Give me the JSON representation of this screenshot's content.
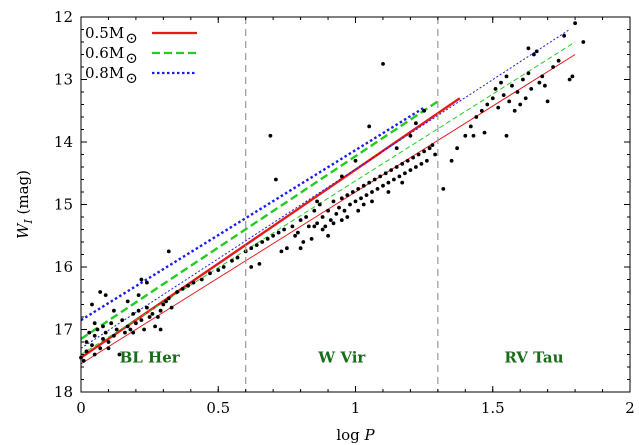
{
  "chart_data": {
    "type": "scatter",
    "title": "",
    "xlabel": "log P",
    "ylabel": "W_I (mag)",
    "xlim": [
      0,
      2
    ],
    "ylim": [
      12,
      18
    ],
    "y_inverted": true,
    "x_ticks": [
      0,
      0.5,
      1,
      1.5,
      2
    ],
    "x_tick_labels": [
      "0",
      "0.5",
      "1",
      "1.5",
      "2"
    ],
    "y_ticks": [
      12,
      13,
      14,
      15,
      16,
      17,
      18
    ],
    "y_tick_labels": [
      "12",
      "13",
      "14",
      "15",
      "16",
      "17",
      "18"
    ],
    "grid": false,
    "legend_position": "top-left",
    "dividers": [
      0.6,
      1.3
    ],
    "regions": [
      {
        "label": "BL Her",
        "x": 0.25,
        "y": 17.45
      },
      {
        "label": "W Vir",
        "x": 0.95,
        "y": 17.45
      },
      {
        "label": "RV Tau",
        "x": 1.65,
        "y": 17.45
      }
    ],
    "series": [
      {
        "name": "0.5M",
        "name_suffix": "⊙",
        "color": "#e41a1c",
        "dash": "solid",
        "thick": {
          "x": [
            0.0,
            1.38
          ],
          "y": [
            17.45,
            13.3
          ]
        },
        "thin": {
          "x": [
            0.0,
            1.8
          ],
          "y": [
            17.55,
            12.6
          ]
        }
      },
      {
        "name": "0.6M",
        "name_suffix": "⊙",
        "color": "#22cc22",
        "dash": "dashed",
        "thick": {
          "x": [
            0.0,
            1.3
          ],
          "y": [
            17.15,
            13.35
          ]
        },
        "thin": {
          "x": [
            0.0,
            1.8
          ],
          "y": [
            17.4,
            12.4
          ]
        }
      },
      {
        "name": "0.8M",
        "name_suffix": "⊙",
        "color": "#1a1aee",
        "dash": "dotted",
        "thick": {
          "x": [
            0.0,
            1.25
          ],
          "y": [
            16.85,
            13.45
          ]
        },
        "thin": {
          "x": [
            0.0,
            1.78
          ],
          "y": [
            17.3,
            12.2
          ]
        }
      }
    ],
    "points": [
      [
        0.0,
        17.45
      ],
      [
        0.01,
        17.5
      ],
      [
        0.02,
        17.2
      ],
      [
        0.02,
        17.35
      ],
      [
        0.03,
        17.05
      ],
      [
        0.04,
        17.25
      ],
      [
        0.05,
        17.4
      ],
      [
        0.05,
        17.1
      ],
      [
        0.06,
        17.0
      ],
      [
        0.07,
        17.3
      ],
      [
        0.08,
        17.15
      ],
      [
        0.08,
        16.95
      ],
      [
        0.09,
        17.05
      ],
      [
        0.1,
        17.2
      ],
      [
        0.1,
        17.3
      ],
      [
        0.11,
        16.9
      ],
      [
        0.12,
        17.1
      ],
      [
        0.13,
        17.0
      ],
      [
        0.14,
        17.4
      ],
      [
        0.15,
        16.85
      ],
      [
        0.16,
        17.05
      ],
      [
        0.17,
        16.95
      ],
      [
        0.18,
        17.0
      ],
      [
        0.19,
        16.75
      ],
      [
        0.2,
        16.9
      ],
      [
        0.21,
        16.7
      ],
      [
        0.22,
        16.85
      ],
      [
        0.23,
        17.0
      ],
      [
        0.24,
        16.65
      ],
      [
        0.25,
        16.8
      ],
      [
        0.26,
        16.75
      ],
      [
        0.27,
        16.95
      ],
      [
        0.28,
        16.8
      ],
      [
        0.29,
        16.7
      ],
      [
        0.3,
        16.6
      ],
      [
        0.31,
        16.55
      ],
      [
        0.32,
        16.5
      ],
      [
        0.33,
        16.65
      ],
      [
        0.35,
        16.4
      ],
      [
        0.37,
        16.35
      ],
      [
        0.39,
        16.3
      ],
      [
        0.41,
        16.25
      ],
      [
        0.44,
        16.2
      ],
      [
        0.47,
        16.1
      ],
      [
        0.5,
        16.05
      ],
      [
        0.52,
        16.0
      ],
      [
        0.55,
        15.9
      ],
      [
        0.57,
        15.85
      ],
      [
        0.04,
        16.6
      ],
      [
        0.07,
        16.4
      ],
      [
        0.09,
        16.45
      ],
      [
        0.05,
        16.9
      ],
      [
        0.12,
        16.7
      ],
      [
        0.17,
        16.55
      ],
      [
        0.21,
        16.45
      ],
      [
        0.32,
        15.75
      ],
      [
        0.29,
        17.0
      ],
      [
        0.22,
        16.2
      ],
      [
        0.24,
        16.25
      ],
      [
        0.19,
        17.05
      ],
      [
        0.6,
        15.75
      ],
      [
        0.62,
        15.7
      ],
      [
        0.64,
        15.65
      ],
      [
        0.66,
        15.6
      ],
      [
        0.68,
        15.55
      ],
      [
        0.7,
        15.5
      ],
      [
        0.72,
        15.45
      ],
      [
        0.74,
        15.4
      ],
      [
        0.75,
        15.7
      ],
      [
        0.77,
        15.35
      ],
      [
        0.78,
        15.5
      ],
      [
        0.8,
        15.25
      ],
      [
        0.81,
        15.6
      ],
      [
        0.82,
        15.2
      ],
      [
        0.83,
        15.35
      ],
      [
        0.85,
        15.1
      ],
      [
        0.86,
        15.3
      ],
      [
        0.87,
        15.0
      ],
      [
        0.88,
        15.2
      ],
      [
        0.89,
        15.35
      ],
      [
        0.9,
        15.1
      ],
      [
        0.91,
        15.25
      ],
      [
        0.92,
        14.95
      ],
      [
        0.93,
        15.15
      ],
      [
        0.94,
        15.05
      ],
      [
        0.95,
        14.9
      ],
      [
        0.96,
        15.1
      ],
      [
        0.97,
        14.85
      ],
      [
        0.98,
        15.0
      ],
      [
        0.99,
        14.8
      ],
      [
        1.0,
        14.95
      ],
      [
        1.01,
        14.75
      ],
      [
        1.02,
        14.9
      ],
      [
        1.03,
        14.7
      ],
      [
        1.04,
        14.85
      ],
      [
        1.05,
        14.65
      ],
      [
        1.06,
        14.8
      ],
      [
        1.07,
        14.6
      ],
      [
        1.08,
        14.75
      ],
      [
        1.09,
        14.55
      ],
      [
        1.1,
        14.7
      ],
      [
        1.11,
        14.5
      ],
      [
        1.12,
        14.65
      ],
      [
        1.13,
        14.45
      ],
      [
        1.14,
        14.6
      ],
      [
        1.15,
        14.4
      ],
      [
        1.16,
        14.55
      ],
      [
        1.17,
        14.35
      ],
      [
        1.18,
        14.5
      ],
      [
        1.19,
        14.3
      ],
      [
        1.2,
        14.45
      ],
      [
        1.21,
        14.25
      ],
      [
        1.22,
        14.4
      ],
      [
        1.23,
        14.2
      ],
      [
        1.24,
        14.35
      ],
      [
        1.25,
        14.15
      ],
      [
        1.26,
        14.3
      ],
      [
        1.27,
        14.1
      ],
      [
        1.28,
        14.05
      ],
      [
        1.29,
        14.2
      ],
      [
        0.85,
        15.35
      ],
      [
        0.92,
        15.3
      ],
      [
        0.97,
        15.2
      ],
      [
        1.03,
        15.0
      ],
      [
        0.79,
        15.45
      ],
      [
        0.84,
        15.55
      ],
      [
        0.88,
        15.4
      ],
      [
        0.95,
        15.25
      ],
      [
        1.01,
        15.1
      ],
      [
        1.06,
        14.95
      ],
      [
        1.12,
        14.8
      ],
      [
        1.17,
        14.65
      ],
      [
        0.69,
        13.9
      ],
      [
        0.71,
        14.6
      ],
      [
        0.8,
        15.7
      ],
      [
        0.86,
        14.95
      ],
      [
        0.95,
        14.55
      ],
      [
        1.0,
        14.3
      ],
      [
        1.05,
        13.75
      ],
      [
        1.1,
        12.75
      ],
      [
        1.15,
        14.1
      ],
      [
        1.2,
        13.9
      ],
      [
        1.22,
        13.7
      ],
      [
        1.25,
        13.5
      ],
      [
        0.65,
        15.95
      ],
      [
        0.73,
        15.75
      ],
      [
        0.62,
        16.0
      ],
      [
        0.9,
        15.5
      ],
      [
        1.32,
        14.75
      ],
      [
        1.35,
        14.3
      ],
      [
        1.37,
        14.1
      ],
      [
        1.4,
        13.9
      ],
      [
        1.42,
        13.75
      ],
      [
        1.44,
        13.6
      ],
      [
        1.46,
        13.5
      ],
      [
        1.48,
        13.4
      ],
      [
        1.5,
        13.3
      ],
      [
        1.51,
        13.15
      ],
      [
        1.52,
        13.45
      ],
      [
        1.53,
        13.05
      ],
      [
        1.54,
        13.25
      ],
      [
        1.55,
        12.95
      ],
      [
        1.56,
        13.35
      ],
      [
        1.57,
        13.1
      ],
      [
        1.58,
        13.5
      ],
      [
        1.59,
        13.2
      ],
      [
        1.6,
        13.4
      ],
      [
        1.61,
        13.0
      ],
      [
        1.62,
        13.3
      ],
      [
        1.63,
        12.9
      ],
      [
        1.64,
        13.15
      ],
      [
        1.65,
        12.6
      ],
      [
        1.66,
        12.55
      ],
      [
        1.67,
        13.05
      ],
      [
        1.68,
        12.95
      ],
      [
        1.69,
        13.1
      ],
      [
        1.7,
        13.35
      ],
      [
        1.72,
        12.8
      ],
      [
        1.74,
        12.7
      ],
      [
        1.76,
        12.3
      ],
      [
        1.78,
        13.0
      ],
      [
        1.8,
        12.1
      ],
      [
        1.83,
        12.4
      ],
      [
        1.79,
        12.95
      ],
      [
        1.55,
        13.9
      ],
      [
        1.47,
        13.85
      ],
      [
        1.43,
        13.9
      ],
      [
        1.63,
        12.5
      ]
    ]
  }
}
